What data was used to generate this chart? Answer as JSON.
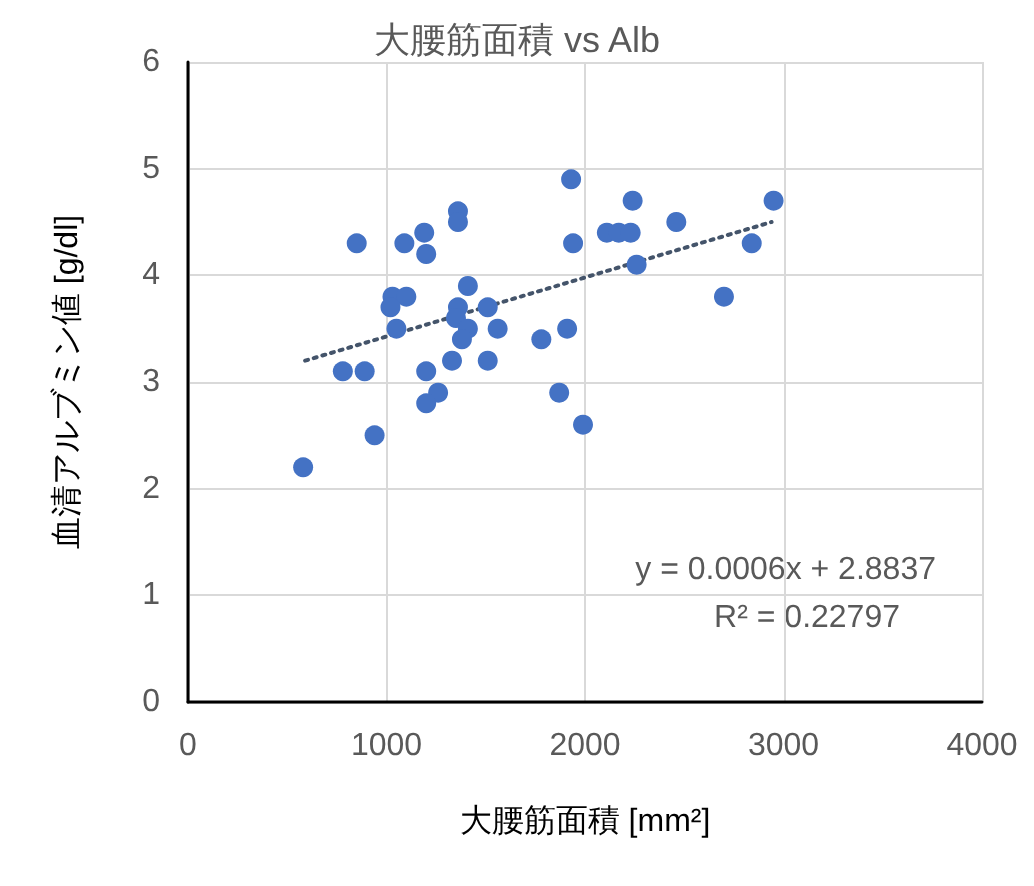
{
  "chart_data": {
    "type": "scatter",
    "title": "大腰筋面積 vs Alb",
    "xlabel": "大腰筋面積 [mm²]",
    "ylabel": "血清アルブミン値 [g/dl]",
    "xlim": [
      0,
      4000
    ],
    "xticks": [
      0,
      1000,
      2000,
      3000,
      4000
    ],
    "ylim": [
      0,
      6
    ],
    "yticks": [
      0,
      1,
      2,
      3,
      4,
      5,
      6
    ],
    "grid": true,
    "marker": "circle",
    "series": [
      {
        "color": "#4472c4",
        "x": [
          580,
          780,
          890,
          940,
          850,
          1090,
          1190,
          1200,
          1360,
          1360,
          1030,
          1100,
          1020,
          1050,
          1410,
          1360,
          1350,
          1410,
          1380,
          1510,
          1560,
          1200,
          1330,
          1510,
          1260,
          1200,
          1780,
          1910,
          1870,
          1990,
          1930,
          1940,
          2240,
          2110,
          2170,
          2230,
          2460,
          2260,
          2950,
          2840,
          2700
        ],
        "values": [
          2.2,
          3.1,
          3.1,
          2.5,
          4.3,
          4.3,
          4.4,
          4.2,
          4.6,
          4.5,
          3.8,
          3.8,
          3.7,
          3.5,
          3.9,
          3.7,
          3.6,
          3.5,
          3.4,
          3.7,
          3.5,
          3.1,
          3.2,
          3.2,
          2.9,
          2.8,
          3.4,
          3.5,
          2.9,
          2.6,
          4.9,
          4.3,
          4.7,
          4.4,
          4.4,
          4.4,
          4.5,
          4.1,
          4.7,
          4.3,
          3.8
        ]
      },
      {
        "type": "line",
        "color": "#44546a",
        "marker": "none",
        "line_style": "dotted",
        "x": [
          590,
          2940
        ],
        "values": [
          3.2,
          4.5
        ]
      }
    ],
    "annotations": [
      "y = 0.0006x + 2.8837",
      "R² = 0.22797"
    ]
  }
}
